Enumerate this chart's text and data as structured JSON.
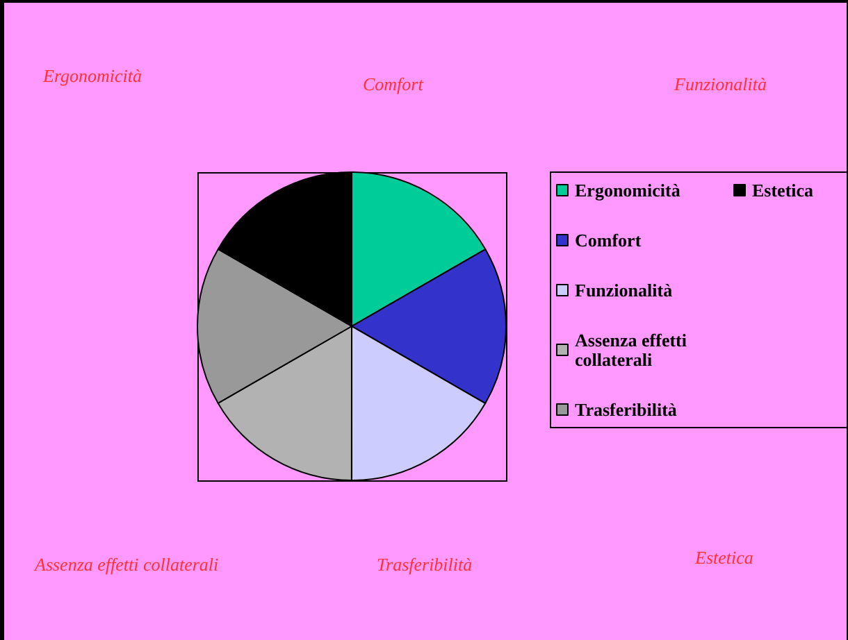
{
  "chart_data": {
    "type": "pie",
    "categories": [
      "Ergonomicità",
      "Comfort",
      "Funzionalità",
      "Assenza effetti collaterali",
      "Trasferibilità",
      "Estetica"
    ],
    "values": [
      16.67,
      16.67,
      16.67,
      16.67,
      16.66,
      16.66
    ],
    "colors": [
      "#00cc99",
      "#3333cc",
      "#ccccff",
      "#b2b2b2",
      "#999999",
      "#000000"
    ],
    "legend": "right",
    "annotations": [
      "Ergonomicità",
      "Comfort",
      "Funzionalità",
      "Assenza effetti collaterali",
      "Trasferibilità",
      "Estetica"
    ]
  }
}
